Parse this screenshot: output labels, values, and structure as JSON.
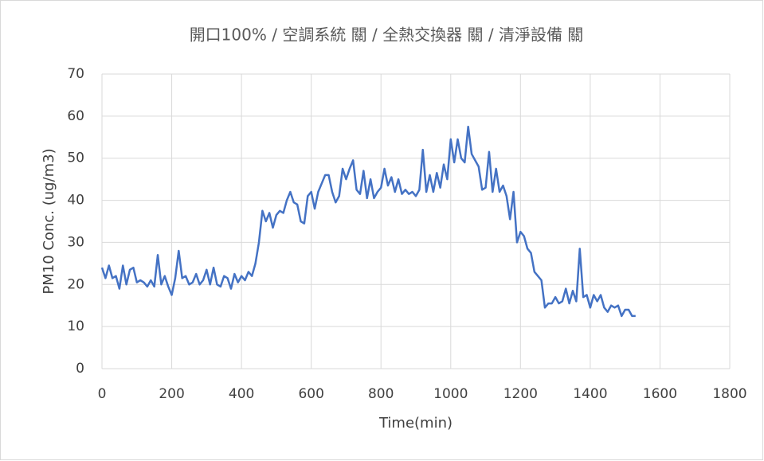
{
  "chart_data": {
    "type": "line",
    "title": "開口100% / 空調系統 關 / 全熱交換器 關 / 清淨設備 關",
    "x_label": "Time(min)",
    "y_label": "PM10 Conc. (ug/m3)",
    "x": [
      0,
      10,
      20,
      30,
      40,
      50,
      60,
      70,
      80,
      90,
      100,
      110,
      120,
      130,
      140,
      150,
      160,
      170,
      180,
      190,
      200,
      210,
      220,
      230,
      240,
      250,
      260,
      270,
      280,
      290,
      300,
      310,
      320,
      330,
      340,
      350,
      360,
      370,
      380,
      390,
      400,
      410,
      420,
      430,
      440,
      450,
      460,
      470,
      480,
      490,
      500,
      510,
      520,
      530,
      540,
      550,
      560,
      570,
      580,
      590,
      600,
      610,
      620,
      630,
      640,
      650,
      660,
      670,
      680,
      690,
      700,
      710,
      720,
      730,
      740,
      750,
      760,
      770,
      780,
      790,
      800,
      810,
      820,
      830,
      840,
      850,
      860,
      870,
      880,
      890,
      900,
      910,
      920,
      930,
      940,
      950,
      960,
      970,
      980,
      990,
      1000,
      1010,
      1020,
      1030,
      1040,
      1050,
      1060,
      1070,
      1080,
      1090,
      1100,
      1110,
      1120,
      1130,
      1140,
      1150,
      1160,
      1170,
      1180,
      1190,
      1200,
      1210,
      1220,
      1230,
      1240,
      1250,
      1260,
      1270,
      1280,
      1290,
      1300,
      1310,
      1320,
      1330,
      1340,
      1350,
      1360,
      1370,
      1380,
      1390,
      1400,
      1410,
      1420,
      1430,
      1440,
      1450,
      1460,
      1470,
      1480,
      1490,
      1500,
      1510,
      1520,
      1530
    ],
    "series": [
      {
        "name": "PM10",
        "color": "#4472c4",
        "values": [
          24,
          21.5,
          24.5,
          21.5,
          22,
          19,
          24.5,
          20,
          23.5,
          24,
          20.5,
          21,
          20.5,
          19.5,
          21,
          19.5,
          27,
          20,
          22,
          19.5,
          17.5,
          21.5,
          28,
          21.5,
          22,
          20,
          20.5,
          22.5,
          20,
          21,
          23.5,
          20,
          24,
          20,
          19.5,
          22,
          21.5,
          19,
          22.5,
          20.5,
          22,
          21,
          23,
          22,
          25,
          30,
          37.5,
          35,
          37,
          33.5,
          36.5,
          37.5,
          37,
          40,
          42,
          39.5,
          39,
          35,
          34.5,
          41,
          42,
          38,
          42,
          44,
          46,
          46,
          42,
          39.5,
          41,
          47.5,
          45,
          47.5,
          49.5,
          42.5,
          41.5,
          47,
          40.5,
          45,
          40.5,
          42,
          43,
          47.5,
          43.5,
          45.5,
          42,
          45,
          41.5,
          42.5,
          41.5,
          42,
          41,
          42.5,
          52,
          42,
          46,
          42,
          46.5,
          43,
          48.5,
          45,
          54.5,
          49,
          54.5,
          50,
          49,
          57.5,
          51,
          49.5,
          48,
          42.5,
          43,
          51.5,
          42,
          47.5,
          42,
          43.5,
          41,
          35.5,
          42,
          30,
          32.5,
          31.5,
          28.5,
          27.5,
          23,
          22,
          21,
          14.5,
          15.5,
          15.5,
          17,
          15.5,
          16,
          19,
          15.5,
          18.5,
          16,
          28.5,
          17,
          17.5,
          14.5,
          17.5,
          16,
          17.5,
          14.5,
          13.5,
          15,
          14.5,
          15,
          12.5,
          14,
          14,
          12.5,
          12.5
        ]
      }
    ],
    "xlim": [
      0,
      1800
    ],
    "xticks": [
      0,
      200,
      400,
      600,
      800,
      1000,
      1200,
      1400,
      1600,
      1800
    ],
    "ylim": [
      0,
      70
    ],
    "yticks": [
      0,
      10,
      20,
      30,
      40,
      50,
      60,
      70
    ],
    "grid": true
  }
}
